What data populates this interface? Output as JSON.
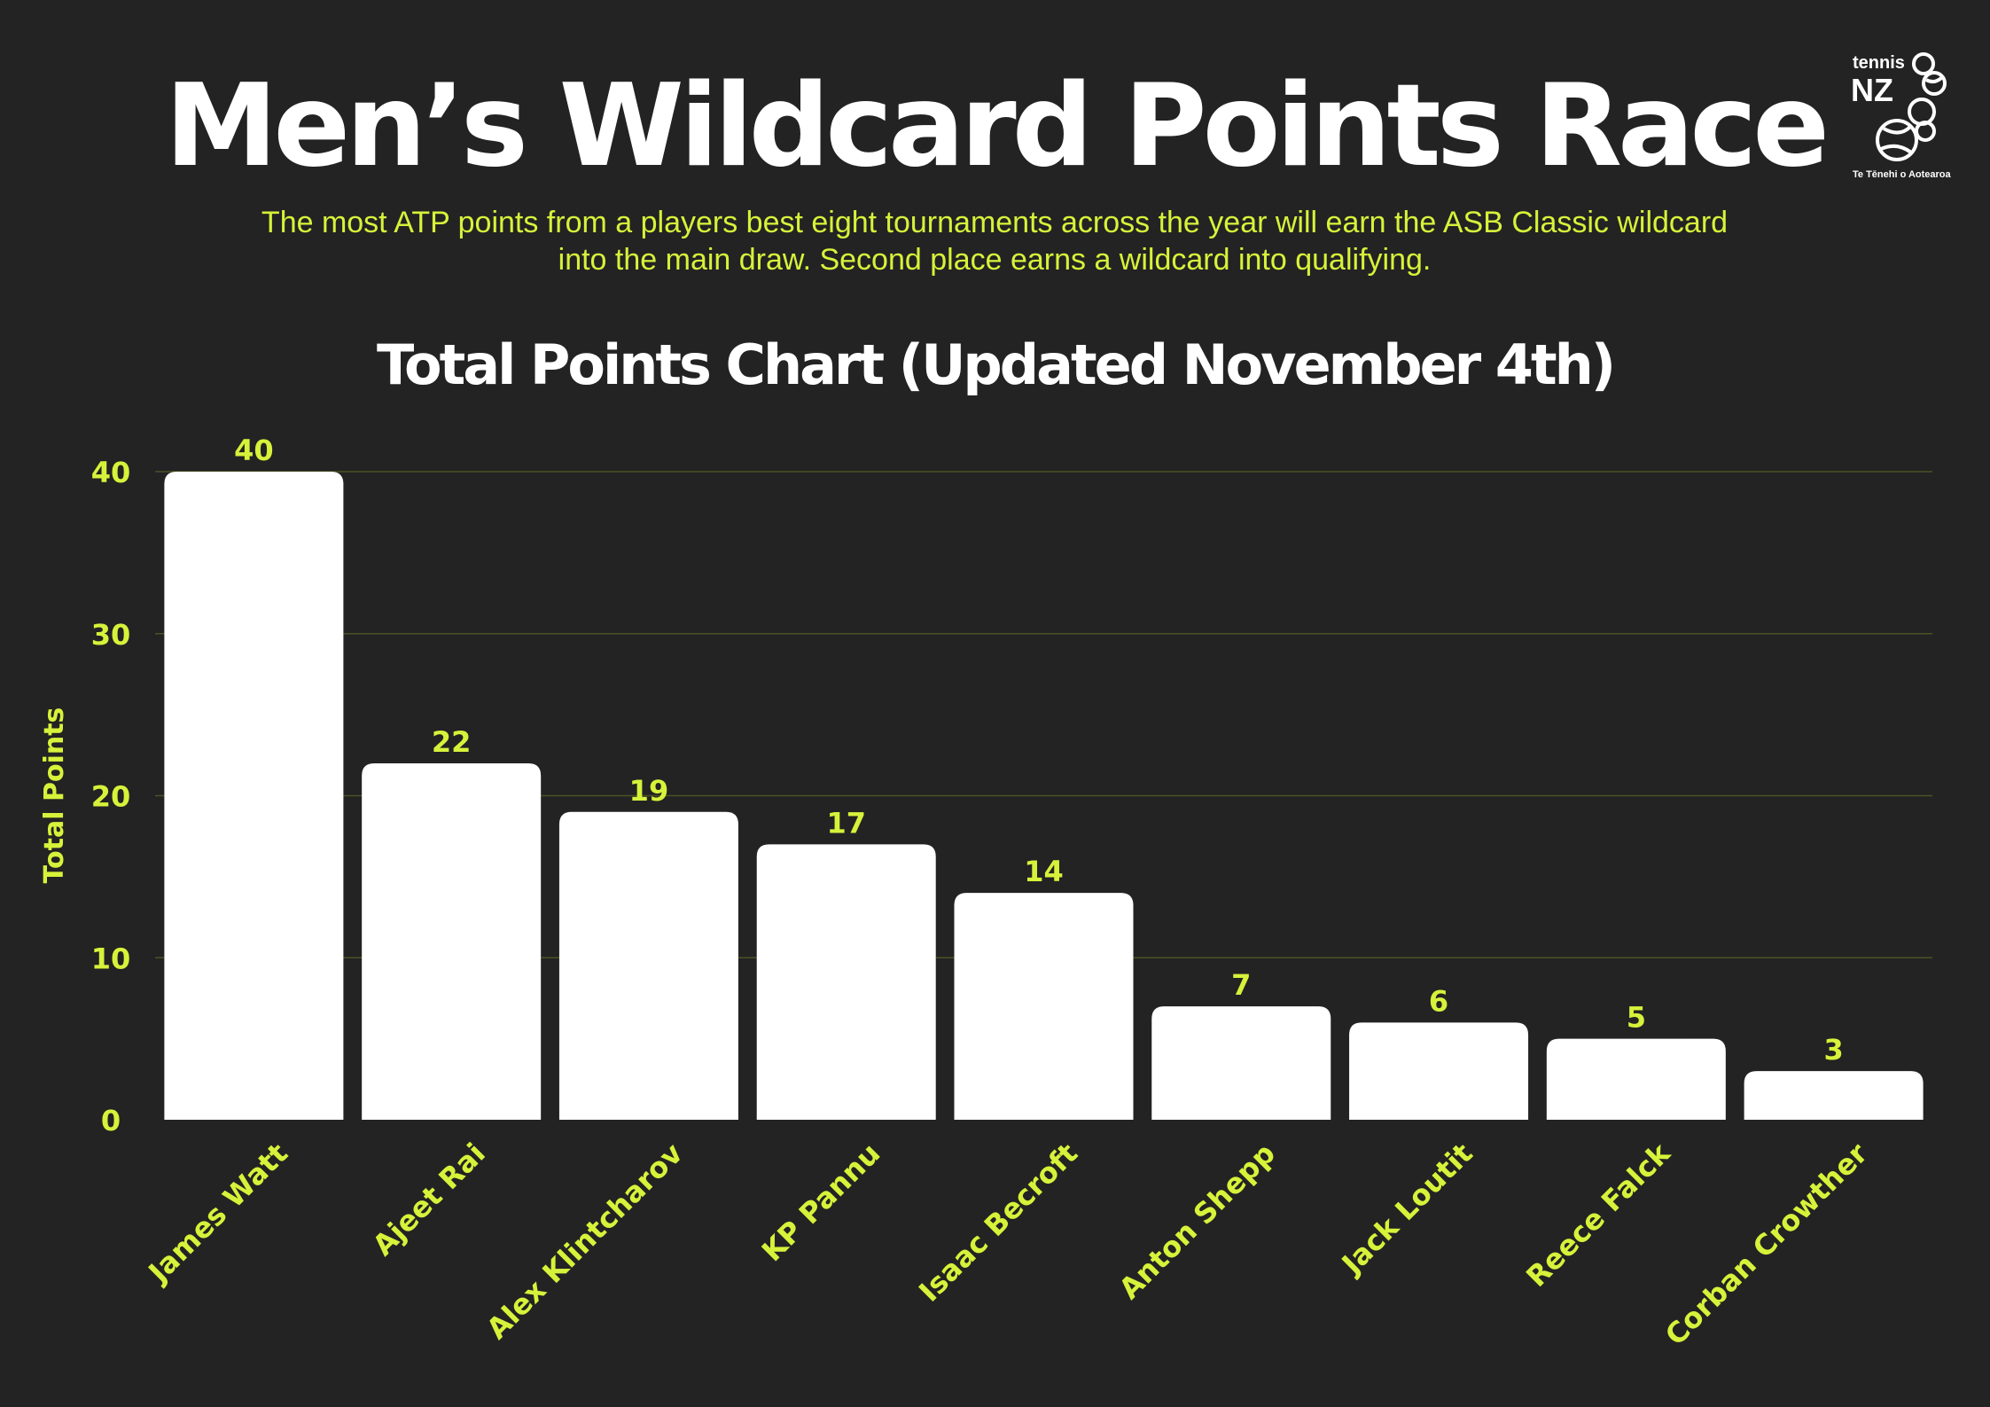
{
  "header": {
    "title": "Men’s Wildcard Points Race",
    "subtitle": "The most ATP points from a players best eight tournaments across the year will earn the ASB Classic wildcard into the main draw. Second place earns a wildcard into qualifying.",
    "chart_title": "Total Points Chart (Updated November 4th)"
  },
  "logo": {
    "line1": "tennis",
    "line2": "NZ",
    "tagline": "Te Tēnehi o Aotearoa",
    "icon": "tennis-balls-icon"
  },
  "colors": {
    "background": "#232323",
    "accent": "#d7f23a",
    "bar": "#ffffff",
    "title": "#ffffff",
    "grid": "#4a5224"
  },
  "chart_data": {
    "type": "bar",
    "title": "Total Points Chart (Updated November 4th)",
    "xlabel": "",
    "ylabel": "Total Points",
    "categories": [
      "James Watt",
      "Ajeet Rai",
      "Alex Klintcharov",
      "KP Pannu",
      "Isaac Becroft",
      "Anton Shepp",
      "Jack Loutit",
      "Reece Falck",
      "Corban Crowther"
    ],
    "values": [
      40,
      22,
      19,
      17,
      14,
      7,
      6,
      5,
      3
    ],
    "ylim": [
      0,
      40
    ],
    "yticks": [
      0,
      10,
      20,
      30,
      40
    ],
    "grid": true,
    "data_labels": true
  }
}
